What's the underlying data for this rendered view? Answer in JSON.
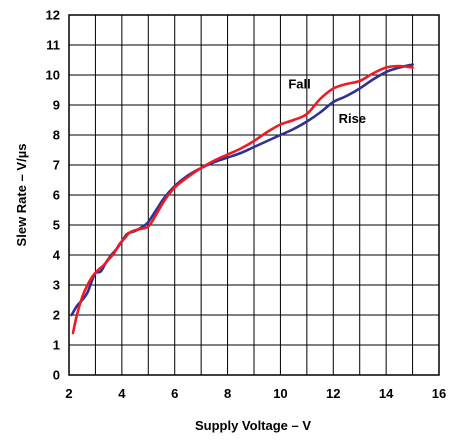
{
  "chart_data": {
    "type": "line",
    "title": "",
    "xlabel": "Supply Voltage – V",
    "ylabel": "Slew Rate – V/µs",
    "xlim": [
      2,
      16
    ],
    "ylim": [
      0,
      12
    ],
    "x_ticks": [
      2,
      4,
      6,
      8,
      10,
      12,
      14,
      16
    ],
    "y_ticks": [
      0,
      1,
      2,
      3,
      4,
      5,
      6,
      7,
      8,
      9,
      10,
      11,
      12
    ],
    "x_tick_labels": [
      "2",
      "4",
      "6",
      "8",
      "10",
      "12",
      "14",
      "16"
    ],
    "y_tick_labels": [
      "0",
      "1",
      "2",
      "3",
      "4",
      "5",
      "6",
      "7",
      "8",
      "9",
      "10",
      "11",
      "12"
    ],
    "grid": true,
    "annotations": [
      {
        "text": "Fall",
        "x": 10.3,
        "y": 9.55
      },
      {
        "text": "Rise",
        "x": 12.2,
        "y": 8.4
      }
    ],
    "series": [
      {
        "name": "Rise",
        "color": "#2e3192",
        "x": [
          2.1,
          2.3,
          2.5,
          2.7,
          2.85,
          3.0,
          3.2,
          3.4,
          3.6,
          3.8,
          4.0,
          4.2,
          4.5,
          4.8,
          5.0,
          5.3,
          5.6,
          6.0,
          6.5,
          7.0,
          7.5,
          8.0,
          8.5,
          9.0,
          9.5,
          10.0,
          10.5,
          11.0,
          11.5,
          12.0,
          12.5,
          13.0,
          13.5,
          14.0,
          14.5,
          15.0
        ],
        "y": [
          2.0,
          2.3,
          2.5,
          2.75,
          3.1,
          3.4,
          3.45,
          3.75,
          4.0,
          4.2,
          4.45,
          4.7,
          4.8,
          4.95,
          5.1,
          5.5,
          5.9,
          6.3,
          6.65,
          6.9,
          7.1,
          7.25,
          7.4,
          7.6,
          7.8,
          8.0,
          8.2,
          8.45,
          8.75,
          9.1,
          9.3,
          9.55,
          9.85,
          10.1,
          10.25,
          10.35
        ]
      },
      {
        "name": "Fall",
        "color": "#ed1c24",
        "x": [
          2.15,
          2.3,
          2.5,
          2.7,
          2.9,
          3.1,
          3.3,
          3.5,
          3.7,
          3.9,
          4.1,
          4.3,
          4.6,
          5.0,
          5.3,
          5.6,
          6.0,
          6.5,
          7.0,
          7.5,
          8.0,
          8.5,
          9.0,
          9.5,
          10.0,
          10.5,
          11.0,
          11.5,
          12.0,
          12.5,
          13.0,
          13.5,
          14.0,
          14.5,
          15.0
        ],
        "y": [
          1.4,
          2.0,
          2.6,
          3.0,
          3.3,
          3.5,
          3.65,
          3.85,
          4.05,
          4.35,
          4.55,
          4.75,
          4.85,
          4.95,
          5.35,
          5.8,
          6.25,
          6.6,
          6.9,
          7.15,
          7.35,
          7.55,
          7.8,
          8.1,
          8.35,
          8.5,
          8.7,
          9.2,
          9.55,
          9.7,
          9.8,
          10.05,
          10.25,
          10.3,
          10.25
        ]
      }
    ]
  }
}
